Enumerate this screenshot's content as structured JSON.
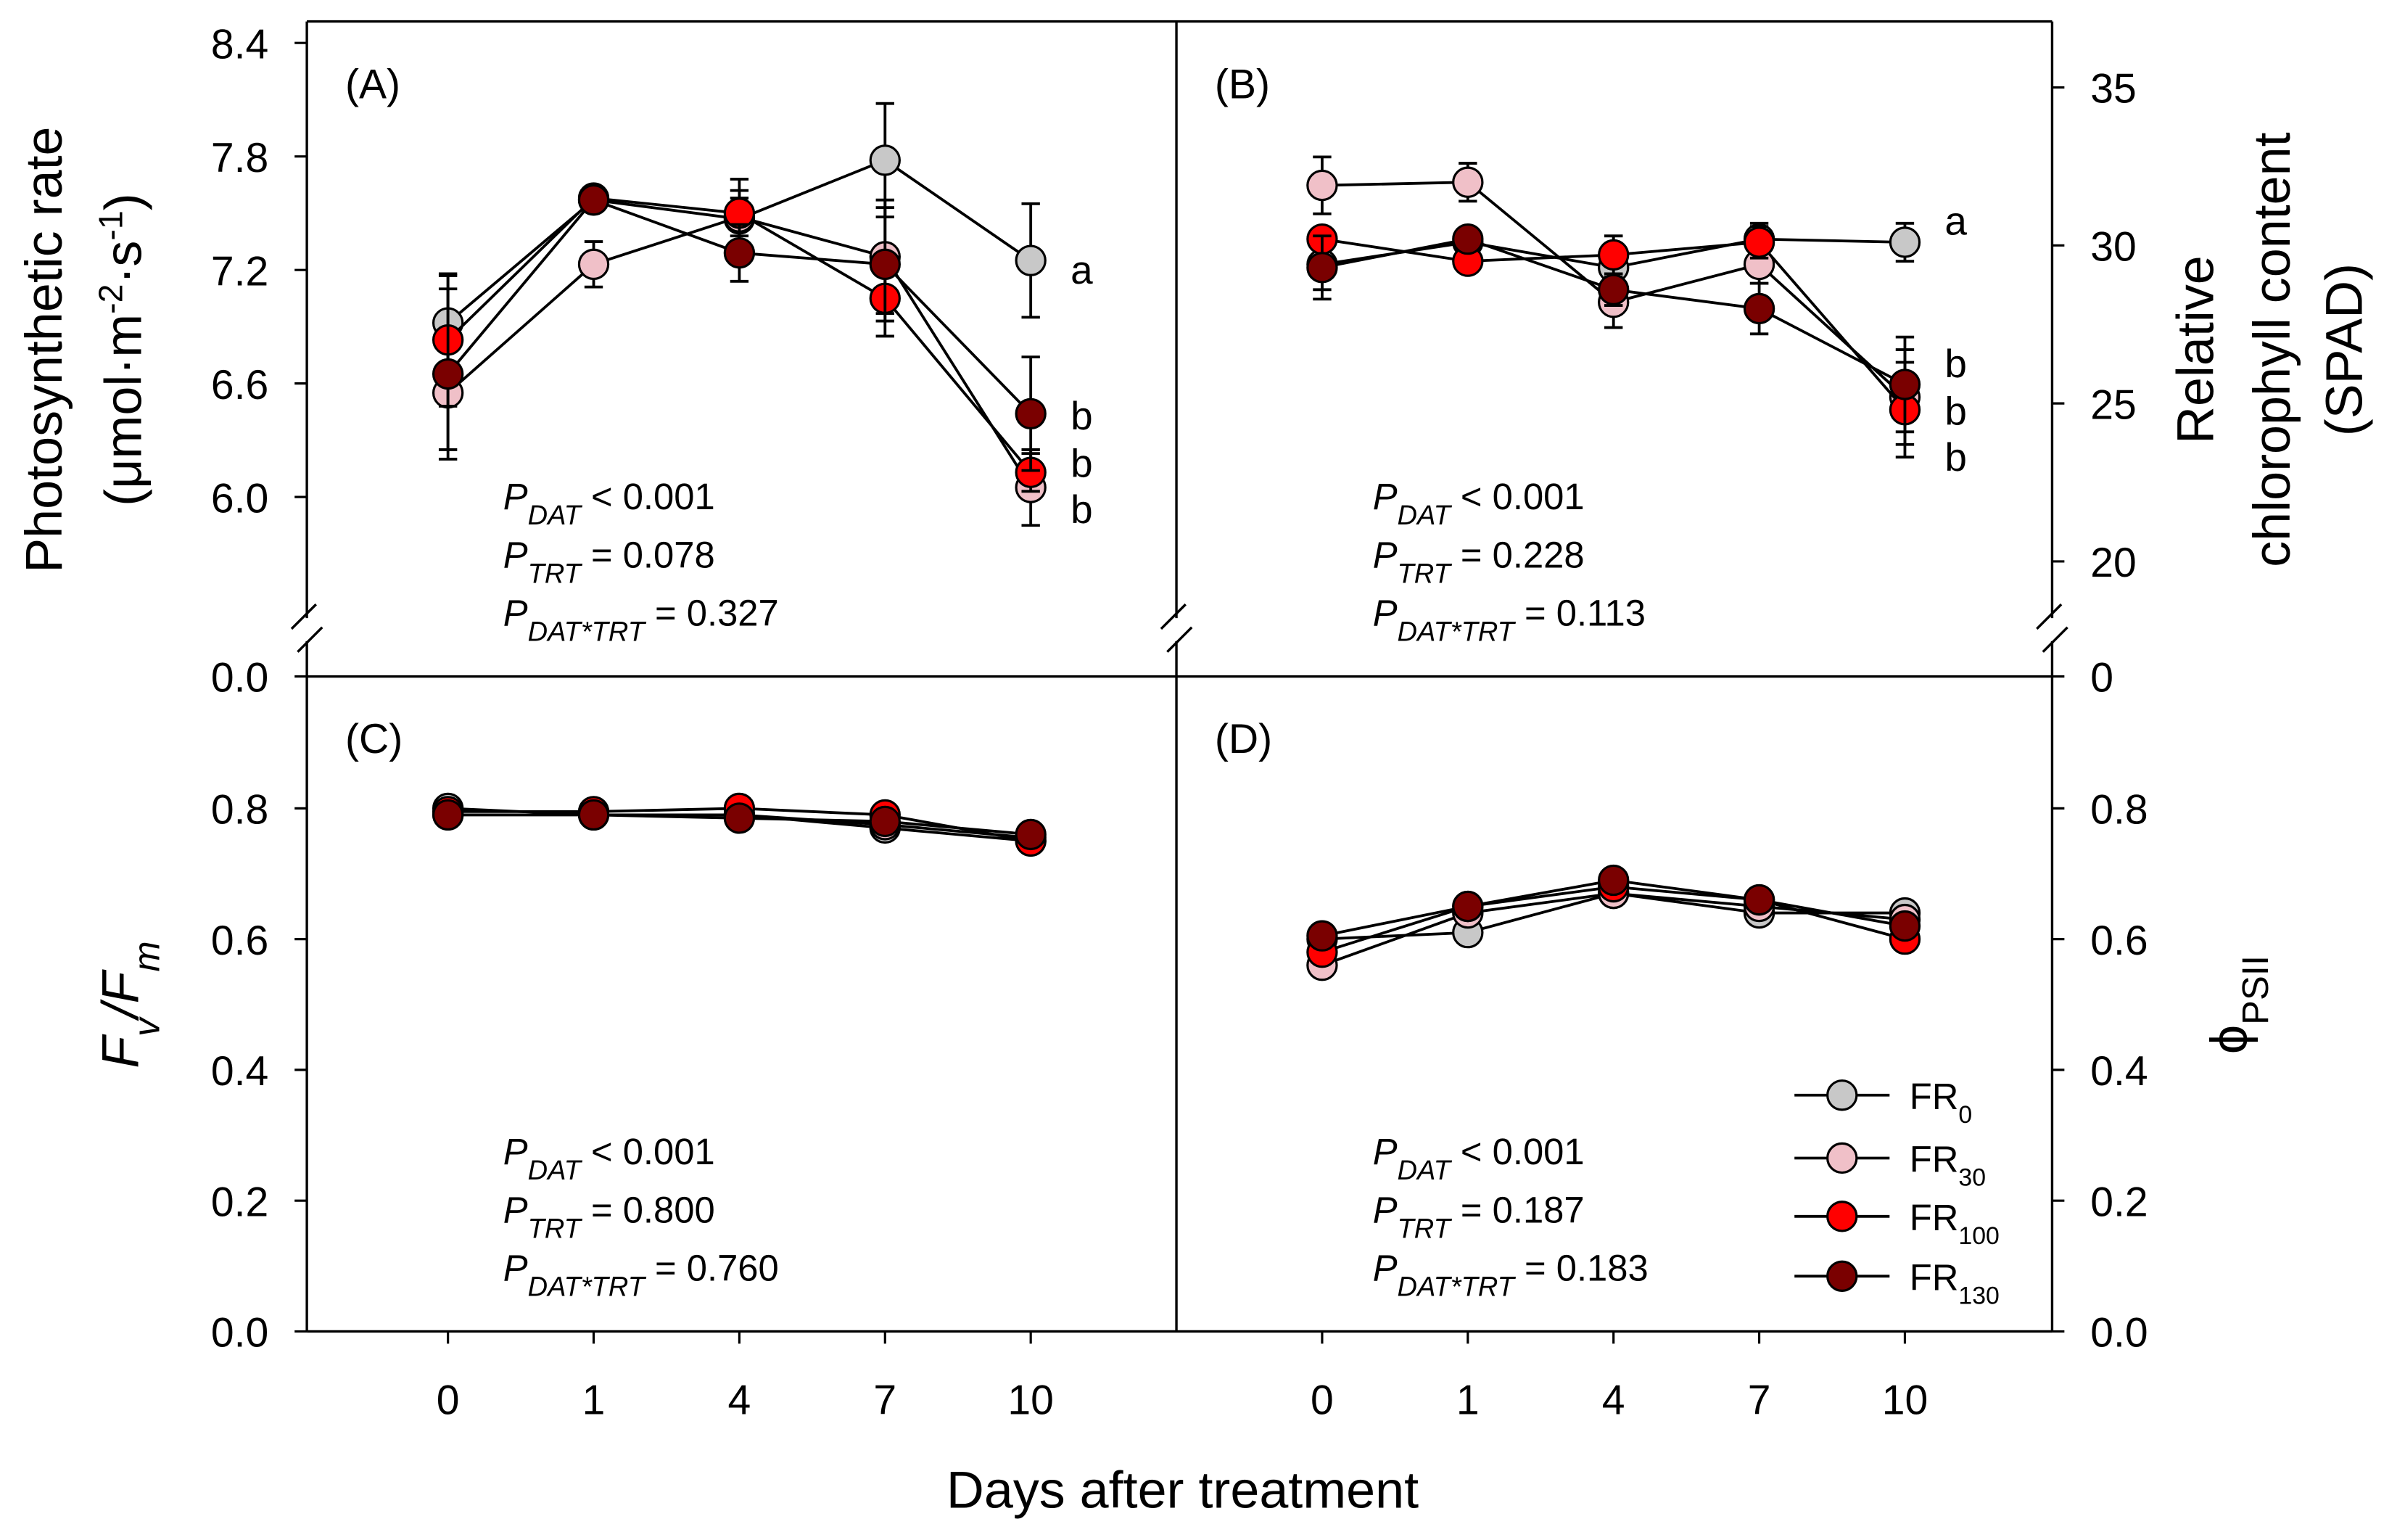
{
  "chart_data": {
    "type": "line",
    "xlabel": "Days after treatment",
    "categories": [
      "0",
      "1",
      "4",
      "7",
      "10"
    ],
    "legend": {
      "placement": "bottom-right of panel D",
      "entries": [
        {
          "base": "FR",
          "sub": "0",
          "color": "#c8c8c8"
        },
        {
          "base": "FR",
          "sub": "30",
          "color": "#f0c0c8"
        },
        {
          "base": "FR",
          "sub": "100",
          "color": "#ff0000"
        },
        {
          "base": "FR",
          "sub": "130",
          "color": "#7a0000"
        }
      ]
    },
    "stat_labels": {
      "p": "P",
      "dat": "DAT",
      "trt": "TRT",
      "int": "DAT*TRT"
    },
    "panels": [
      {
        "label": "(A)",
        "ylabel_lines": [
          "Photosynthetic rate",
          "(μmol·m",
          "-2",
          "·s",
          "-1",
          ")"
        ],
        "axis": "left",
        "yticks": [
          "6.0",
          "6.6",
          "7.2",
          "7.8",
          "8.4"
        ],
        "ytick_values": [
          6.0,
          6.6,
          7.2,
          7.8,
          8.4
        ],
        "ylim": [
          6.0,
          8.4
        ],
        "axis_break": true,
        "break_zero_label": "0.0",
        "series": [
          {
            "name": "FR0",
            "values": [
              6.92,
              7.57,
              7.47,
              7.78,
              7.25
            ],
            "err": [
              0.25,
              0.05,
              0.15,
              0.3,
              0.3
            ]
          },
          {
            "name": "FR30",
            "values": [
              6.55,
              7.23,
              7.48,
              7.27,
              6.05
            ],
            "err": [
              0.3,
              0.12,
              0.1,
              0.3,
              0.2
            ]
          },
          {
            "name": "FR100",
            "values": [
              6.83,
              7.58,
              7.5,
              7.05,
              6.13
            ],
            "err": [
              0.35,
              0.04,
              0.18,
              0.2,
              0.1
            ]
          },
          {
            "name": "FR130",
            "values": [
              6.65,
              7.57,
              7.29,
              7.23,
              6.44
            ],
            "err": [
              0.45,
              0.04,
              0.15,
              0.3,
              0.3
            ]
          }
        ],
        "letters": [
          {
            "series": "FR0",
            "text": "a"
          },
          {
            "series": "FR130",
            "text": "b"
          },
          {
            "series": "FR100",
            "text": "b"
          },
          {
            "series": "FR30",
            "text": "b"
          }
        ],
        "stats": {
          "dat": " < 0.001",
          "trt": " = 0.078",
          "int": " = 0.327"
        }
      },
      {
        "label": "(B)",
        "ylabel_lines": [
          "Relative",
          "chlorophyll content",
          "(SPAD)"
        ],
        "axis": "right",
        "yticks": [
          "20",
          "25",
          "30",
          "35"
        ],
        "ytick_values": [
          20,
          25,
          30,
          35
        ],
        "ylim": [
          19,
          36.6
        ],
        "axis_break": true,
        "break_zero_label": "0",
        "series": [
          {
            "name": "FR0",
            "values": [
              29.4,
              30.1,
              29.3,
              30.2,
              30.1
            ],
            "err": [
              0.8,
              0.3,
              1.0,
              0.5,
              0.6
            ]
          },
          {
            "name": "FR30",
            "values": [
              31.9,
              32.0,
              28.2,
              29.4,
              25.2
            ],
            "err": [
              0.9,
              0.6,
              0.8,
              0.6,
              1.5
            ]
          },
          {
            "name": "FR100",
            "values": [
              30.2,
              29.5,
              29.7,
              30.1,
              24.8
            ],
            "err": [
              0.3,
              0.2,
              0.6,
              0.5,
              1.5
            ]
          },
          {
            "name": "FR130",
            "values": [
              29.3,
              30.2,
              28.6,
              28.0,
              25.6
            ],
            "err": [
              1.0,
              0.3,
              0.5,
              0.8,
              1.5
            ]
          }
        ],
        "letters": [
          {
            "series": "FR0",
            "text": "a"
          },
          {
            "series": "FR130",
            "text": "b"
          },
          {
            "series": "FR100",
            "text": "b"
          },
          {
            "series": "FR30",
            "text": "b"
          }
        ],
        "stats": {
          "dat": " < 0.001",
          "trt": " = 0.228",
          "int": " = 0.113"
        }
      },
      {
        "label": "(C)",
        "ylabel_lines": [
          "F",
          "v",
          "/F",
          "m"
        ],
        "axis": "left",
        "yticks": [
          "0.0",
          "0.2",
          "0.4",
          "0.6",
          "0.8"
        ],
        "ytick_values": [
          0,
          0.2,
          0.4,
          0.6,
          0.8
        ],
        "ylim": [
          0,
          1.0
        ],
        "series": [
          {
            "name": "FR0",
            "values": [
              0.8,
              0.79,
              0.79,
              0.77,
              0.75
            ]
          },
          {
            "name": "FR30",
            "values": [
              0.79,
              0.79,
              0.79,
              0.775,
              0.755
            ]
          },
          {
            "name": "FR100",
            "values": [
              0.795,
              0.795,
              0.8,
              0.79,
              0.75
            ]
          },
          {
            "name": "FR130",
            "values": [
              0.79,
              0.79,
              0.785,
              0.78,
              0.76
            ]
          }
        ],
        "stats": {
          "dat": " < 0.001",
          "trt": " = 0.800",
          "int": " = 0.760"
        }
      },
      {
        "label": "(D)",
        "ylabel_lines": [
          "ϕ",
          "PSII"
        ],
        "axis": "right",
        "yticks": [
          "0.0",
          "0.2",
          "0.4",
          "0.6",
          "0.8"
        ],
        "ytick_values": [
          0,
          0.2,
          0.4,
          0.6,
          0.8
        ],
        "ylim": [
          0,
          1.0
        ],
        "series": [
          {
            "name": "FR0",
            "values": [
              0.6,
              0.61,
              0.67,
              0.64,
              0.64
            ]
          },
          {
            "name": "FR30",
            "values": [
              0.56,
              0.64,
              0.67,
              0.65,
              0.63
            ]
          },
          {
            "name": "FR100",
            "values": [
              0.58,
              0.65,
              0.68,
              0.66,
              0.6
            ]
          },
          {
            "name": "FR130",
            "values": [
              0.605,
              0.65,
              0.69,
              0.66,
              0.62
            ]
          }
        ],
        "stats": {
          "dat": " < 0.001",
          "trt": " = 0.187",
          "int": " = 0.183"
        }
      }
    ]
  }
}
